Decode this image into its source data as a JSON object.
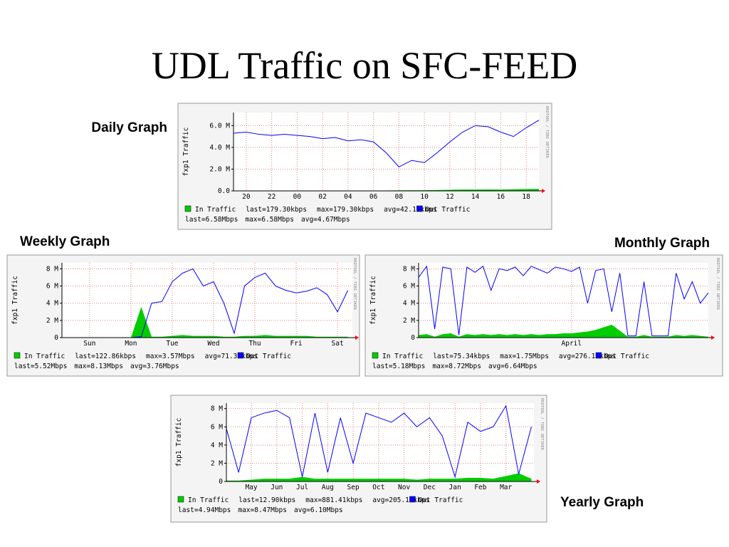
{
  "title": "UDL Traffic on SFC-FEED",
  "chart_data": [
    {
      "type": "line",
      "title": "Daily Graph",
      "ylabel": "fxp1 Traffic",
      "watermark": "RRDTOOL / TOBI OETIKER",
      "xlim": [
        0,
        24
      ],
      "ylim": [
        0,
        7.2
      ],
      "xticks": [
        {
          "value": 1,
          "label": "20"
        },
        {
          "value": 3,
          "label": "22"
        },
        {
          "value": 5,
          "label": "00"
        },
        {
          "value": 7,
          "label": "02"
        },
        {
          "value": 9,
          "label": "04"
        },
        {
          "value": 11,
          "label": "06"
        },
        {
          "value": 13,
          "label": "08"
        },
        {
          "value": 15,
          "label": "10"
        },
        {
          "value": 17,
          "label": "12"
        },
        {
          "value": 19,
          "label": "14"
        },
        {
          "value": 21,
          "label": "16"
        },
        {
          "value": 23,
          "label": "18"
        }
      ],
      "yticks": [
        {
          "value": 0,
          "label": "0.0"
        },
        {
          "value": 2,
          "label": "2.0 M"
        },
        {
          "value": 4,
          "label": "4.0 M"
        },
        {
          "value": 6,
          "label": "6.0 M"
        }
      ],
      "x": [
        0,
        1,
        2,
        3,
        4,
        5,
        6,
        7,
        8,
        9,
        10,
        11,
        12,
        13,
        14,
        15,
        16,
        17,
        18,
        19,
        20,
        21,
        22,
        23,
        24
      ],
      "series": [
        {
          "name": "In Traffic",
          "color": "#00cc00",
          "stats": [
            "last=179.30kbps",
            "max=179.30kbps",
            "avg=42.16kbps"
          ],
          "values": [
            0.03,
            0.03,
            0.03,
            0.02,
            0.02,
            0.02,
            0.02,
            0.02,
            0.02,
            0.02,
            0.02,
            0.02,
            0.03,
            0.05,
            0.06,
            0.06,
            0.08,
            0.1,
            0.12,
            0.12,
            0.13,
            0.12,
            0.15,
            0.17,
            0.18
          ]
        },
        {
          "name": "Out Traffic",
          "color": "#0000ff",
          "stats": [
            "last=6.58Mbps",
            "max=6.58Mbps",
            "avg=4.67Mbps"
          ],
          "values": [
            5.3,
            5.4,
            5.2,
            5.1,
            5.2,
            5.1,
            5.0,
            4.8,
            4.9,
            4.6,
            4.7,
            4.5,
            3.5,
            2.2,
            2.8,
            2.6,
            3.5,
            4.5,
            5.4,
            6.0,
            5.9,
            5.4,
            5.0,
            5.8,
            6.5
          ]
        }
      ]
    },
    {
      "type": "line",
      "title": "Weekly Graph",
      "ylabel": "fxp1 Traffic",
      "watermark": "RRDTOOL / TOBI OETIKER",
      "xlim": [
        -0.17,
        6.86
      ],
      "ylim": [
        0,
        8.7
      ],
      "xticks": [
        {
          "value": 0.5,
          "label": "Sun"
        },
        {
          "value": 1.5,
          "label": "Mon"
        },
        {
          "value": 2.5,
          "label": "Tue"
        },
        {
          "value": 3.5,
          "label": "Wed"
        },
        {
          "value": 4.5,
          "label": "Thu"
        },
        {
          "value": 5.5,
          "label": "Fri"
        },
        {
          "value": 6.5,
          "label": "Sat"
        }
      ],
      "yticks": [
        0,
        {
          "value": 2,
          "label": "2 M"
        },
        {
          "value": 4,
          "label": "4 M"
        },
        {
          "value": 6,
          "label": "6 M"
        },
        {
          "value": 8,
          "label": "8 M"
        }
      ],
      "x": [
        0,
        0.25,
        0.5,
        0.75,
        1,
        1.25,
        1.5,
        1.75,
        2,
        2.25,
        2.5,
        2.75,
        3,
        3.25,
        3.5,
        3.75,
        4,
        4.25,
        4.5,
        4.75,
        5,
        5.25,
        5.5,
        5.75,
        6,
        6.25,
        6.5,
        6.75
      ],
      "series": [
        {
          "name": "In Traffic",
          "color": "#00cc00",
          "stats": [
            "last=122.86kbps",
            "max=3.57Mbps",
            "avg=71.39kbps"
          ],
          "values": [
            0,
            0,
            0,
            0,
            0,
            0,
            0,
            3.57,
            0.1,
            0.1,
            0.2,
            0.3,
            0.2,
            0.2,
            0.2,
            0.1,
            0.1,
            0.2,
            0.2,
            0.3,
            0.2,
            0.2,
            0.2,
            0.2,
            0.1,
            0.1,
            0.1,
            0.1
          ]
        },
        {
          "name": "Out Traffic",
          "color": "#0000ff",
          "stats": [
            "last=5.52Mbps",
            "max=8.13Mbps",
            "avg=3.76Mbps"
          ],
          "values": [
            0,
            0,
            0,
            0,
            0,
            0,
            0,
            0.1,
            4.0,
            4.2,
            6.5,
            7.5,
            8.0,
            6.0,
            6.5,
            4.0,
            0.5,
            6.0,
            7.0,
            7.5,
            6.0,
            5.5,
            5.2,
            5.4,
            5.8,
            5.0,
            3.0,
            5.5
          ]
        }
      ]
    },
    {
      "type": "line",
      "title": "Monthly Graph",
      "ylabel": "fxp1 Traffic",
      "watermark": "RRDTOOL / TOBI OETIKER",
      "xlim": [
        0,
        36
      ],
      "ylim": [
        0,
        8.7
      ],
      "xticks": [
        {
          "value": 19,
          "label": "April"
        }
      ],
      "yticks": [
        0,
        {
          "value": 2,
          "label": "2 M"
        },
        {
          "value": 4,
          "label": "4 M"
        },
        {
          "value": 6,
          "label": "6 M"
        },
        {
          "value": 8,
          "label": "8 M"
        }
      ],
      "x": [
        0,
        1,
        2,
        3,
        4,
        5,
        6,
        7,
        8,
        9,
        10,
        11,
        12,
        13,
        14,
        15,
        16,
        17,
        18,
        19,
        20,
        21,
        22,
        23,
        24,
        25,
        26,
        27,
        28,
        29,
        30,
        31,
        32,
        33,
        34,
        35,
        36
      ],
      "series": [
        {
          "name": "In Traffic",
          "color": "#00cc00",
          "stats": [
            "last=75.34kbps",
            "max=1.75Mbps",
            "avg=276.18kbps"
          ],
          "values": [
            0.3,
            0.4,
            0.1,
            0.4,
            0.5,
            0.1,
            0.4,
            0.3,
            0.4,
            0.3,
            0.4,
            0.3,
            0.4,
            0.3,
            0.4,
            0.3,
            0.4,
            0.4,
            0.5,
            0.5,
            0.6,
            0.7,
            0.9,
            1.2,
            1.5,
            0.8,
            0.1,
            0.1,
            0.3,
            0.1,
            0.1,
            0.1,
            0.3,
            0.2,
            0.3,
            0.2,
            0.1
          ]
        },
        {
          "name": "Out Traffic",
          "color": "#0000ff",
          "stats": [
            "last=5.18Mbps",
            "max=8.72Mbps",
            "avg=6.64Mbps"
          ],
          "values": [
            7.0,
            8.3,
            1.0,
            8.2,
            8.0,
            0.3,
            8.2,
            7.6,
            8.3,
            5.5,
            8.0,
            7.8,
            8.2,
            7.2,
            8.3,
            7.9,
            7.5,
            8.2,
            8.0,
            7.7,
            8.2,
            4.0,
            7.8,
            8.0,
            3.0,
            7.5,
            0.2,
            0.2,
            6.5,
            0.2,
            0.2,
            0.2,
            7.5,
            4.5,
            6.5,
            4.0,
            5.2
          ]
        }
      ]
    },
    {
      "type": "line",
      "title": "Yearly Graph",
      "ylabel": "fxp1 Traffic",
      "watermark": "RRDTOOL / TOBI OETIKER",
      "xlim": [
        -0.48,
        11.6
      ],
      "ylim": [
        0,
        8.6
      ],
      "xticks": [
        {
          "value": 0.5,
          "label": "May"
        },
        {
          "value": 1.5,
          "label": "Jun"
        },
        {
          "value": 2.5,
          "label": "Jul"
        },
        {
          "value": 3.5,
          "label": "Aug"
        },
        {
          "value": 4.5,
          "label": "Sep"
        },
        {
          "value": 5.5,
          "label": "Oct"
        },
        {
          "value": 6.5,
          "label": "Nov"
        },
        {
          "value": 7.5,
          "label": "Dec"
        },
        {
          "value": 8.5,
          "label": "Jan"
        },
        {
          "value": 9.5,
          "label": "Feb"
        },
        {
          "value": 10.5,
          "label": "Mar"
        }
      ],
      "yticks": [
        0,
        {
          "value": 2,
          "label": "2 M"
        },
        {
          "value": 4,
          "label": "4 M"
        },
        {
          "value": 6,
          "label": "6 M"
        },
        {
          "value": 8,
          "label": "8 M"
        }
      ],
      "x": [
        -0.5,
        0,
        0.5,
        1,
        1.5,
        2,
        2.5,
        3,
        3.5,
        4,
        4.5,
        5,
        5.5,
        6,
        6.5,
        7,
        7.5,
        8,
        8.5,
        9,
        9.5,
        10,
        10.5,
        11,
        11.5
      ],
      "series": [
        {
          "name": "In Traffic",
          "color": "#00cc00",
          "stats": [
            "last=12.90kbps",
            "max=881.41kbps",
            "avg=205.15kbps"
          ],
          "values": [
            0.1,
            0.1,
            0.2,
            0.3,
            0.3,
            0.3,
            0.5,
            0.3,
            0.3,
            0.3,
            0.3,
            0.3,
            0.3,
            0.3,
            0.3,
            0.2,
            0.3,
            0.3,
            0.3,
            0.4,
            0.4,
            0.3,
            0.6,
            0.9,
            0.3
          ]
        },
        {
          "name": "Out Traffic",
          "color": "#0000ff",
          "stats": [
            "last=4.94Mbps",
            "max=8.47Mbps",
            "avg=6.10Mbps"
          ],
          "values": [
            6.0,
            1.0,
            7.0,
            7.5,
            7.8,
            7.0,
            0.5,
            7.5,
            1.0,
            7.0,
            2.0,
            7.5,
            7.0,
            6.5,
            7.5,
            6.0,
            7.0,
            5.0,
            0.5,
            6.5,
            5.5,
            6.0,
            8.3,
            0.8,
            6.0
          ]
        }
      ]
    }
  ]
}
